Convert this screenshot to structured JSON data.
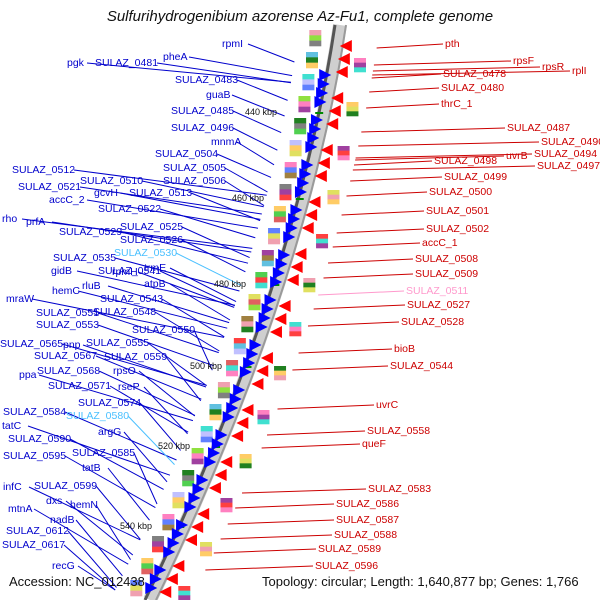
{
  "title": "Sulfurihydrogenibium azorense Az-Fu1, complete genome",
  "footer": {
    "accession": "Accession: NC_012438",
    "topology": "Topology: circular; Length: 1,640,877 bp; Genes: 1,766"
  },
  "ticks": [
    "440 kbp",
    "460 kbp",
    "480 kbp",
    "500 kbp",
    "520 kbp",
    "540 kbp"
  ],
  "colors": {
    "left_label": "#0000cc",
    "right_label": "#cc0000",
    "highlight_blue": "#4ac0ff",
    "highlight_pink": "#ff99cc",
    "left_arrow": "#0000ff",
    "right_arrow": "#ff0000"
  },
  "left_labels": [
    "rpmI",
    "pheA",
    "pgk",
    "SULAZ_0481",
    "SULAZ_0483",
    "guaB",
    "SULAZ_0485",
    "SULAZ_0496",
    "mnmA",
    "SULAZ_0504",
    "SULAZ_0505",
    "SULAZ_0506",
    "SULAZ_0512",
    "SULAZ_0510",
    "gcvH",
    "SULAZ_0521",
    "SULAZ_0513",
    "accC_2",
    "SULAZ_0522",
    "rho",
    "prfA",
    "SULAZ_0525",
    "SULAZ_0529",
    "SULAZ_0526",
    "SULAZ_0530",
    "SULAZ_0535",
    "trmE",
    "gidB",
    "SULAZ_0541",
    "rpmH",
    "atpB",
    "rluB",
    "hemC",
    "SULAZ_0543",
    "mraW",
    "SULAZ_0548",
    "SULAZ_0551",
    "SULAZ_0550",
    "SULAZ_0553",
    "SULAZ_0565",
    "pnp",
    "SULAZ_0555",
    "SULAZ_0567",
    "SULAZ_0559",
    "SULAZ_0568",
    "rpsO",
    "ppa",
    "SULAZ_0571",
    "rseP",
    "SULAZ_0574",
    "SULAZ_0584",
    "SULAZ_0580",
    "tatC",
    "argG",
    "SULAZ_0590",
    "SULAZ_0585",
    "SULAZ_0595",
    "tatB",
    "infC",
    "SULAZ_0599",
    "dxs",
    "hemN",
    "mtnA",
    "nadB",
    "SULAZ_0612",
    "SULAZ_0617",
    "recG"
  ],
  "right_labels": [
    "pth",
    "rpsF",
    "rpsR",
    "rplI",
    "SULAZ_0478",
    "SULAZ_0480",
    "thrC_1",
    "SULAZ_0487",
    "SULAZ_0490",
    "uvrB",
    "SULAZ_0494",
    "SULAZ_0497",
    "SULAZ_0498",
    "SULAZ_0499",
    "SULAZ_0500",
    "SULAZ_0501",
    "SULAZ_0502",
    "accC_1",
    "SULAZ_0508",
    "SULAZ_0509",
    "SULAZ_0511",
    "SULAZ_0527",
    "SULAZ_0528",
    "bioB",
    "SULAZ_0544",
    "uvrC",
    "SULAZ_0558",
    "queF",
    "SULAZ_0583",
    "SULAZ_0586",
    "SULAZ_0587",
    "SULAZ_0588",
    "SULAZ_0589",
    "SULAZ_0596"
  ]
}
